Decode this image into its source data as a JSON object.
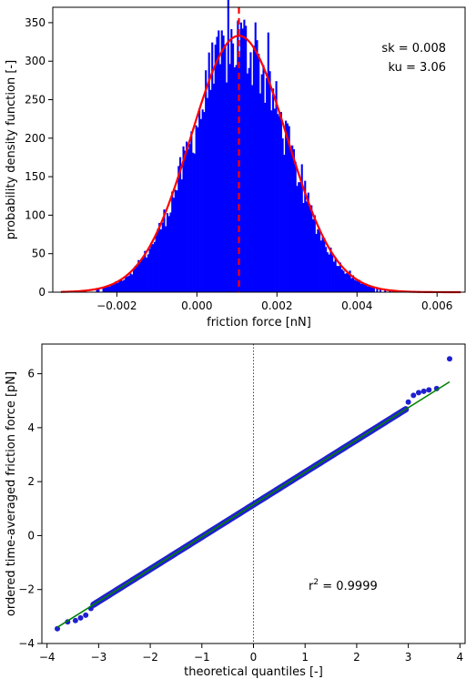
{
  "chart_data": [
    {
      "type": "bar",
      "xlabel": "friction force [nN]",
      "ylabel": "probability density function [-]",
      "xlim": [
        -0.0036,
        0.0067
      ],
      "ylim": [
        0,
        370
      ],
      "xticks": [
        -0.002,
        0.0,
        0.002,
        0.004,
        0.006
      ],
      "xtick_labels": [
        "−0.002",
        "0.000",
        "0.002",
        "0.004",
        "0.006"
      ],
      "yticks": [
        0,
        50,
        100,
        150,
        200,
        250,
        300,
        350
      ],
      "ytick_labels": [
        "0",
        "50",
        "100",
        "150",
        "200",
        "250",
        "300",
        "350"
      ],
      "histogram_color": "#0000ff",
      "fit": {
        "mean": 0.00105,
        "std": 0.0012,
        "peak": 333,
        "color": "#ff0000"
      },
      "mean_line": {
        "x": 0.00105,
        "color": "#ff0000",
        "style": "dashed"
      },
      "annotations": [
        "sk = 0.008",
        "ku = 3.06"
      ]
    },
    {
      "type": "scatter",
      "xlabel": "theoretical quantiles [-]",
      "ylabel": "ordered time-averaged friction force  [pN]",
      "xlim": [
        -4.1,
        4.1
      ],
      "ylim": [
        -4,
        7.1
      ],
      "xticks": [
        -4,
        -3,
        -2,
        -1,
        0,
        1,
        2,
        3,
        4
      ],
      "xtick_labels": [
        "−4",
        "−3",
        "−2",
        "−1",
        "0",
        "1",
        "2",
        "3",
        "4"
      ],
      "yticks": [
        -4,
        -2,
        0,
        2,
        4,
        6
      ],
      "ytick_labels": [
        "−4",
        "−2",
        "0",
        "2",
        "4",
        "6"
      ],
      "fit_line": {
        "x": [
          -3.8,
          3.8
        ],
        "y": [
          -3.4,
          5.7
        ],
        "color": "#008000"
      },
      "points_color": "#2020d0",
      "points": [
        {
          "x": -3.8,
          "y": -3.45
        },
        {
          "x": -3.6,
          "y": -3.2
        },
        {
          "x": -3.45,
          "y": -3.15
        },
        {
          "x": -3.35,
          "y": -3.05
        },
        {
          "x": -3.25,
          "y": -2.95
        },
        {
          "x": -3.15,
          "y": -2.7
        },
        {
          "x": 3.0,
          "y": 4.95
        },
        {
          "x": 3.1,
          "y": 5.2
        },
        {
          "x": 3.2,
          "y": 5.3
        },
        {
          "x": 3.3,
          "y": 5.35
        },
        {
          "x": 3.4,
          "y": 5.4
        },
        {
          "x": 3.55,
          "y": 5.45
        },
        {
          "x": 3.8,
          "y": 6.55
        }
      ],
      "zero_line": {
        "x": 0,
        "style": "dotted"
      },
      "annotation_main": "r",
      "annotation_sup": "2",
      "annotation_rest": " = 0.9999"
    }
  ]
}
